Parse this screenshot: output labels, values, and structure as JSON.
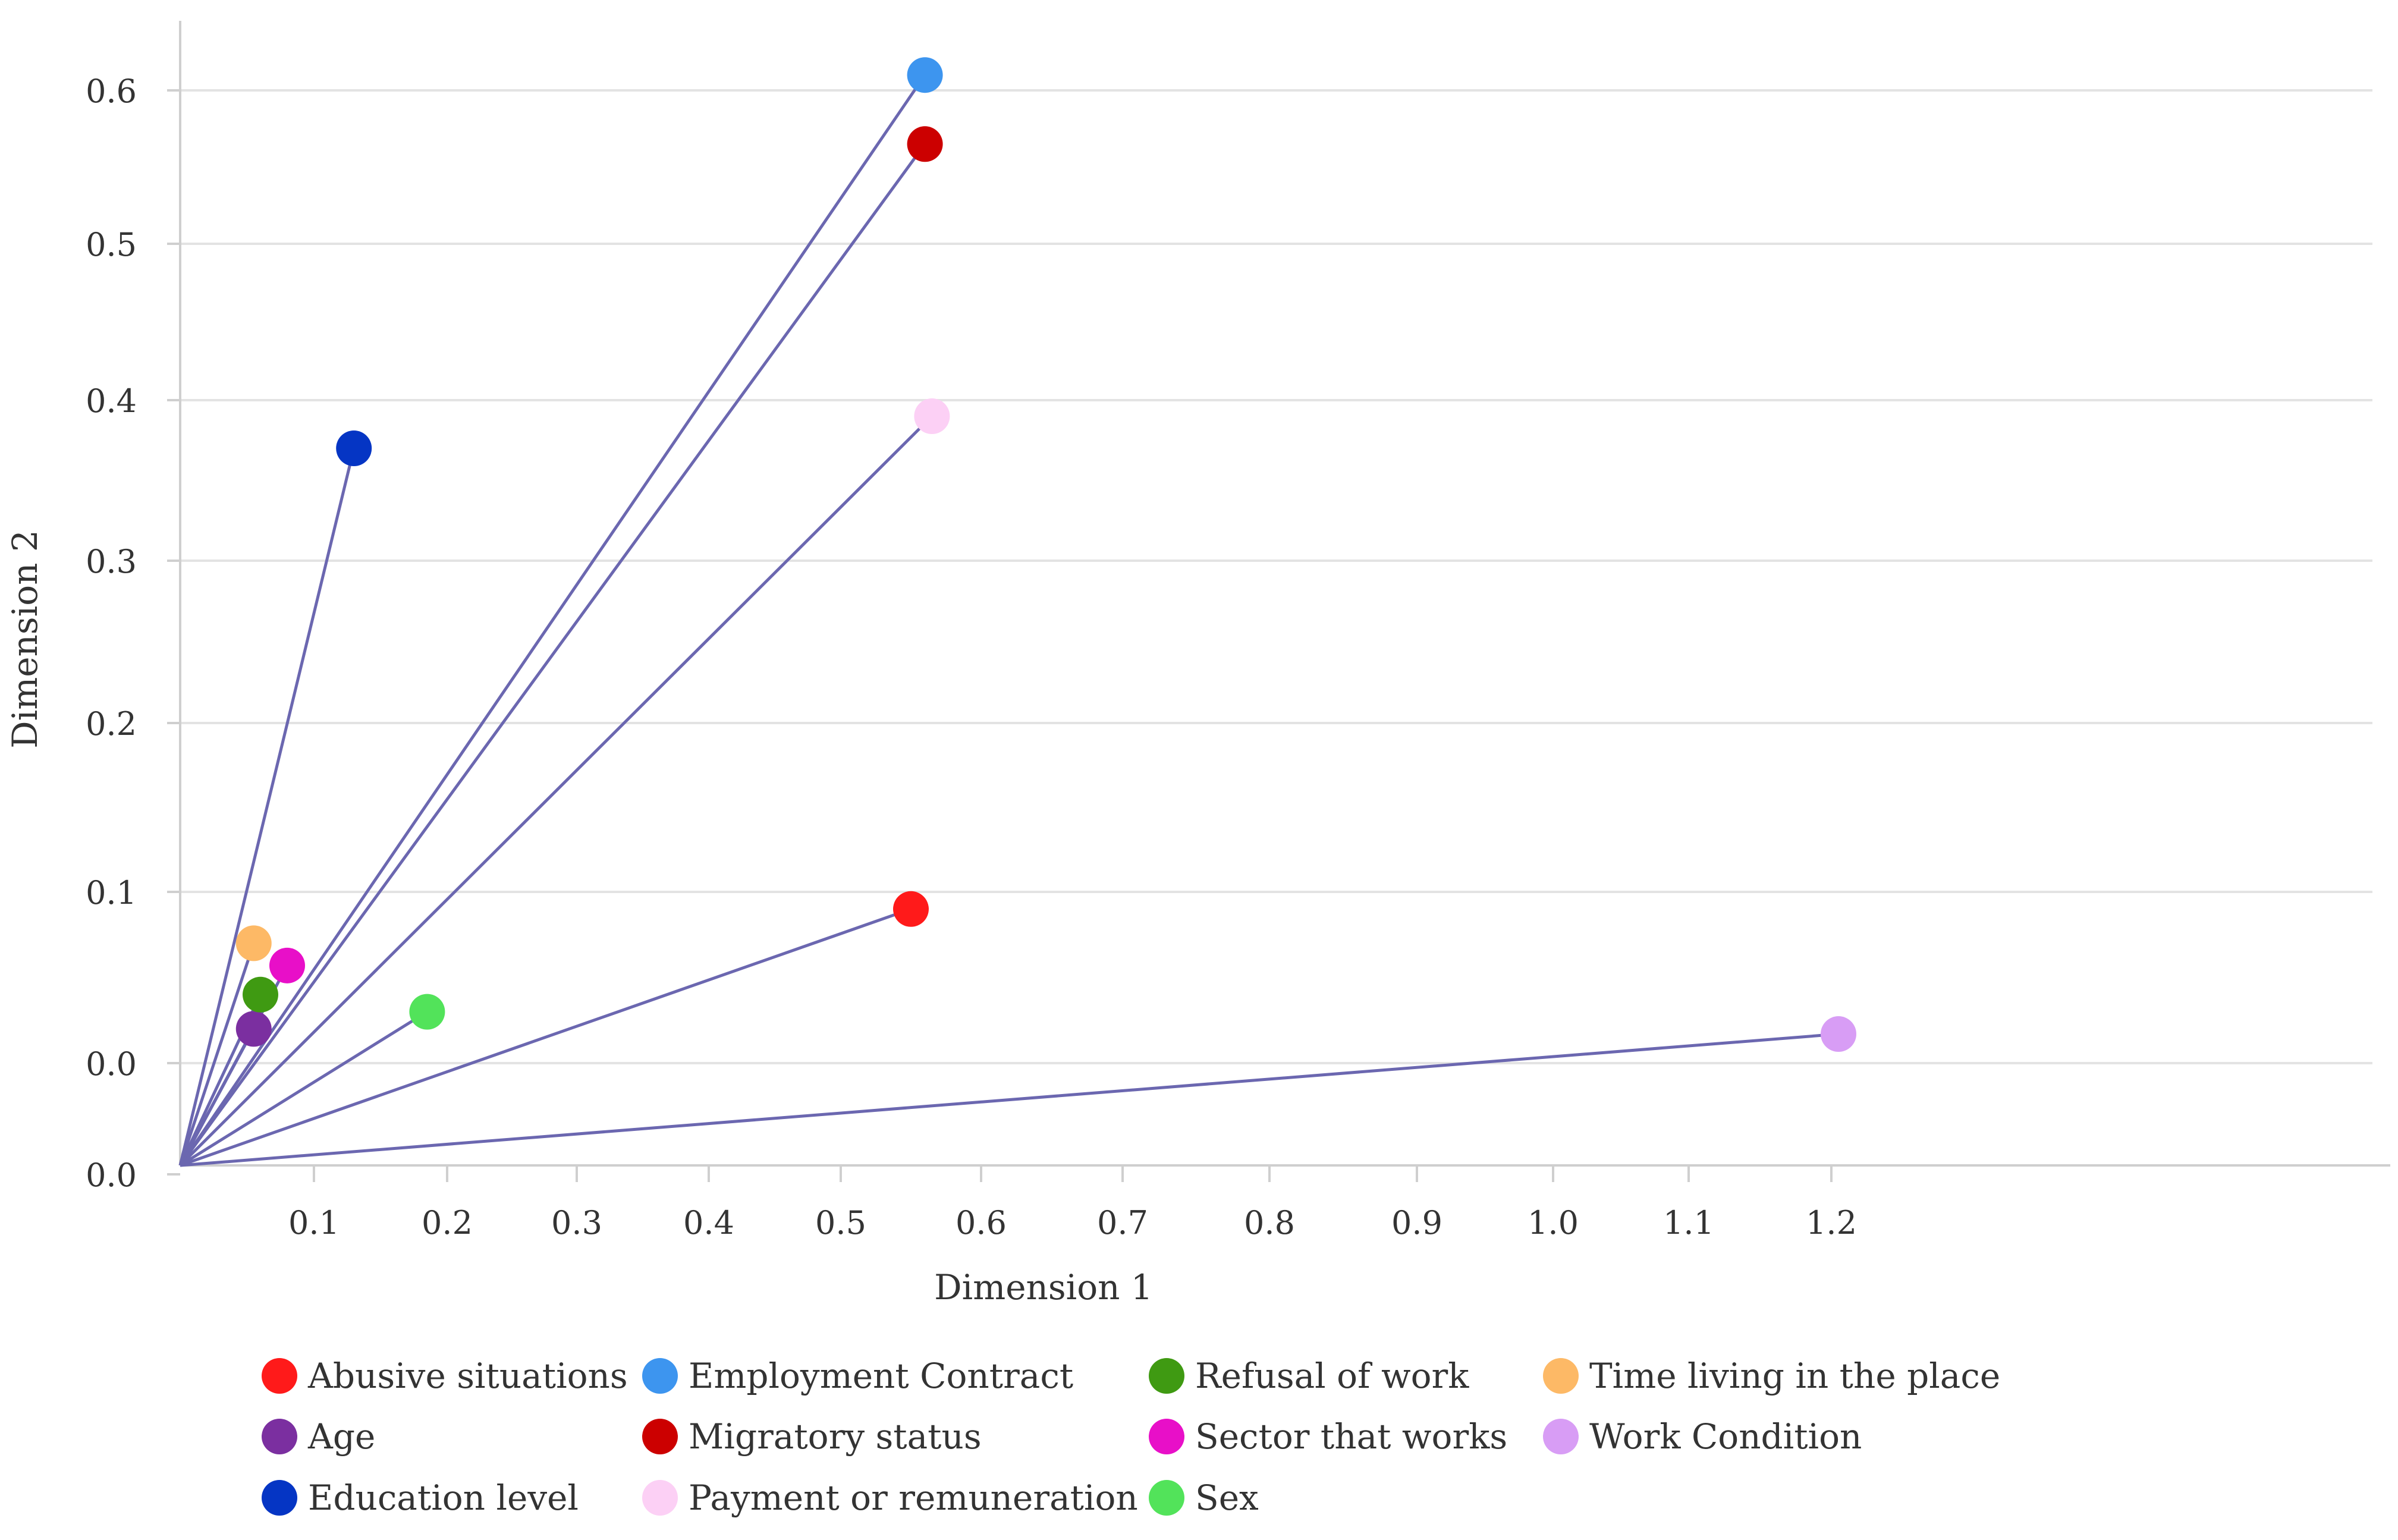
{
  "chart_data": {
    "type": "scatter",
    "title": "",
    "xlabel": "Dimension 1",
    "ylabel": "Dimension 2",
    "x_ticks": [
      "0.1",
      "0.2",
      "0.3",
      "0.4",
      "0.5",
      "0.6",
      "0.7",
      "0.8",
      "0.9",
      "1.0",
      "1.1",
      "1.2"
    ],
    "y_ticks": [
      "0.0",
      "0.0",
      "0.1",
      "0.2",
      "0.3",
      "0.4",
      "0.5",
      "0.6"
    ],
    "origin": [
      0.0,
      0.0
    ],
    "grid": true,
    "legend_position": "bottom",
    "line_color": "#6b67b0",
    "series": [
      {
        "name": "Abusive situations",
        "color": "#ff1a1a",
        "x": 0.55,
        "y": 0.09
      },
      {
        "name": "Age",
        "color": "#7b2fa0",
        "x": 0.055,
        "y": 0.02
      },
      {
        "name": "Education level",
        "color": "#0535c4",
        "x": 0.13,
        "y": 0.37
      },
      {
        "name": "Employment Contract",
        "color": "#3d95ef",
        "x": 0.56,
        "y": 0.61
      },
      {
        "name": "Migratory status",
        "color": "#cc0000",
        "x": 0.56,
        "y": 0.565
      },
      {
        "name": "Payment or remuneration",
        "color": "#fcd0f5",
        "x": 0.565,
        "y": 0.39
      },
      {
        "name": "Refusal of work",
        "color": "#3f9a12",
        "x": 0.06,
        "y": 0.04
      },
      {
        "name": "Sector that works",
        "color": "#e80fc8",
        "x": 0.08,
        "y": 0.057
      },
      {
        "name": "Sex",
        "color": "#52e35a",
        "x": 0.185,
        "y": 0.03
      },
      {
        "name": "Time living in the place",
        "color": "#fdb966",
        "x": 0.055,
        "y": 0.07
      },
      {
        "name": "Work Condition",
        "color": "#d89df5",
        "x": 1.205,
        "y": 0.017
      }
    ]
  }
}
